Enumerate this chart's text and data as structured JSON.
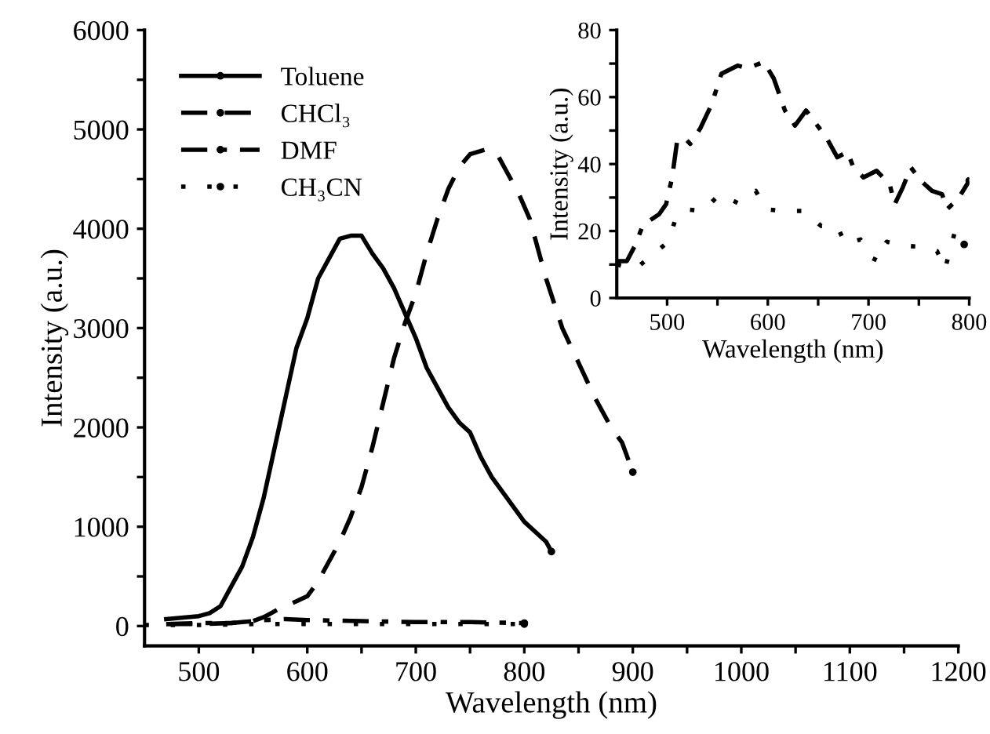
{
  "chart_data": [
    {
      "type": "line",
      "xlabel": "Wavelength (nm)",
      "ylabel": "Intensity (a.u.)",
      "xlim": [
        450,
        1200
      ],
      "xticks": [
        500,
        {
          "value": 550,
          "label": null
        },
        600,
        {
          "value": 650,
          "label": null
        },
        700,
        {
          "value": 750,
          "label": null
        },
        800,
        {
          "value": 850,
          "label": null
        },
        900,
        {
          "value": 950,
          "label": null
        },
        1000,
        {
          "value": 1050,
          "label": null
        },
        1100,
        {
          "value": 1150,
          "label": null
        },
        1200
      ],
      "ylim": [
        -200,
        6000
      ],
      "yticks": [
        0,
        {
          "value": 500,
          "label": null
        },
        1000,
        {
          "value": 1500,
          "label": null
        },
        2000,
        {
          "value": 2500,
          "label": null
        },
        3000,
        {
          "value": 3500,
          "label": null
        },
        4000,
        {
          "value": 4500,
          "label": null
        },
        5000,
        {
          "value": 5500,
          "label": null
        },
        6000
      ],
      "legend": "top left",
      "grid": false,
      "series": [
        {
          "name": "Toluene",
          "color": "#000000",
          "line_style": "solid",
          "x": [
            470,
            480,
            500,
            510,
            520,
            530,
            540,
            550,
            560,
            570,
            580,
            590,
            600,
            610,
            620,
            630,
            640,
            650,
            660,
            670,
            680,
            690,
            700,
            710,
            720,
            730,
            740,
            750,
            760,
            770,
            780,
            790,
            800,
            810,
            820,
            825
          ],
          "values": [
            70,
            80,
            100,
            130,
            200,
            400,
            600,
            900,
            1300,
            1800,
            2300,
            2800,
            3100,
            3500,
            3700,
            3900,
            3930,
            3930,
            3750,
            3600,
            3400,
            3150,
            2900,
            2600,
            2400,
            2200,
            2050,
            1950,
            1700,
            1500,
            1350,
            1200,
            1050,
            950,
            850,
            750
          ]
        },
        {
          "name": "CHCl₃",
          "color": "#000000",
          "line_style": "dashed",
          "x": [
            470,
            500,
            530,
            550,
            560,
            575,
            590,
            600,
            610,
            620,
            630,
            640,
            650,
            660,
            670,
            680,
            690,
            700,
            710,
            720,
            730,
            740,
            750,
            765,
            775,
            785,
            795,
            805,
            820,
            835,
            850,
            865,
            880,
            890,
            900
          ],
          "values": [
            20,
            20,
            30,
            50,
            90,
            180,
            250,
            300,
            450,
            650,
            850,
            1100,
            1400,
            1800,
            2250,
            2700,
            3050,
            3350,
            3750,
            4100,
            4400,
            4620,
            4750,
            4800,
            4750,
            4550,
            4350,
            4100,
            3500,
            3000,
            2650,
            2300,
            2000,
            1850,
            1550
          ]
        },
        {
          "name": "DMF",
          "color": "#000000",
          "line_style": "dashdot",
          "x": [
            470,
            500,
            530,
            560,
            580,
            600,
            650,
            700,
            750,
            800
          ],
          "values": [
            20,
            30,
            30,
            60,
            70,
            60,
            50,
            40,
            40,
            30
          ]
        },
        {
          "name": "CH₃CN",
          "color": "#000000",
          "line_style": "dotted",
          "x": [
            450,
            500,
            550,
            600,
            700,
            800
          ],
          "values": [
            10,
            10,
            20,
            20,
            20,
            20
          ]
        }
      ]
    },
    {
      "type": "line",
      "xlabel": "Wavelength (nm)",
      "ylabel": "Intensity (a.u.)",
      "xlim": [
        450,
        800
      ],
      "xticks": [
        500,
        {
          "value": 550,
          "label": null
        },
        600,
        {
          "value": 650,
          "label": null
        },
        700,
        {
          "value": 750,
          "label": null
        },
        800
      ],
      "ylim": [
        0,
        80
      ],
      "yticks": [
        0,
        {
          "value": 10,
          "label": null
        },
        20,
        {
          "value": 30,
          "label": null
        },
        40,
        {
          "value": 50,
          "label": null
        },
        60,
        {
          "value": 70,
          "label": null
        },
        80
      ],
      "grid": false,
      "series": [
        {
          "color": "#000000",
          "line_style": "dashdot",
          "x": [
            450,
            460,
            468,
            476,
            492,
            499,
            505,
            510,
            518,
            523,
            533,
            544,
            554,
            570,
            580,
            596,
            606,
            617,
            627,
            638,
            648,
            658,
            669,
            679,
            685,
            695,
            708,
            721,
            726,
            734,
            742,
            752,
            763,
            773,
            778,
            789,
            800
          ],
          "values": [
            11,
            11,
            15.6,
            21.8,
            25,
            28,
            36,
            47,
            47.6,
            46,
            50.7,
            57.7,
            67,
            69.4,
            68.6,
            70.5,
            65.5,
            56,
            51.5,
            56,
            52,
            48,
            42,
            43.7,
            39,
            36,
            38,
            34,
            28,
            33,
            39,
            35,
            32,
            31,
            26.5,
            29.6,
            35
          ]
        },
        {
          "color": "#000000",
          "line_style": "dotted",
          "x": [
            450,
            468,
            486,
            502,
            508,
            518,
            536,
            552,
            570,
            588,
            598,
            617,
            635,
            653,
            669,
            677,
            692,
            703,
            710,
            718,
            736,
            752,
            768,
            776,
            781,
            786,
            795
          ],
          "values": [
            10,
            8.6,
            13,
            17,
            23.4,
            26.5,
            26,
            31,
            28.4,
            32,
            26.5,
            26,
            26,
            21.5,
            21.5,
            16,
            17.5,
            12,
            11,
            16.8,
            15.6,
            15.3,
            14,
            8.6,
            14.4,
            20,
            16
          ]
        }
      ]
    }
  ]
}
